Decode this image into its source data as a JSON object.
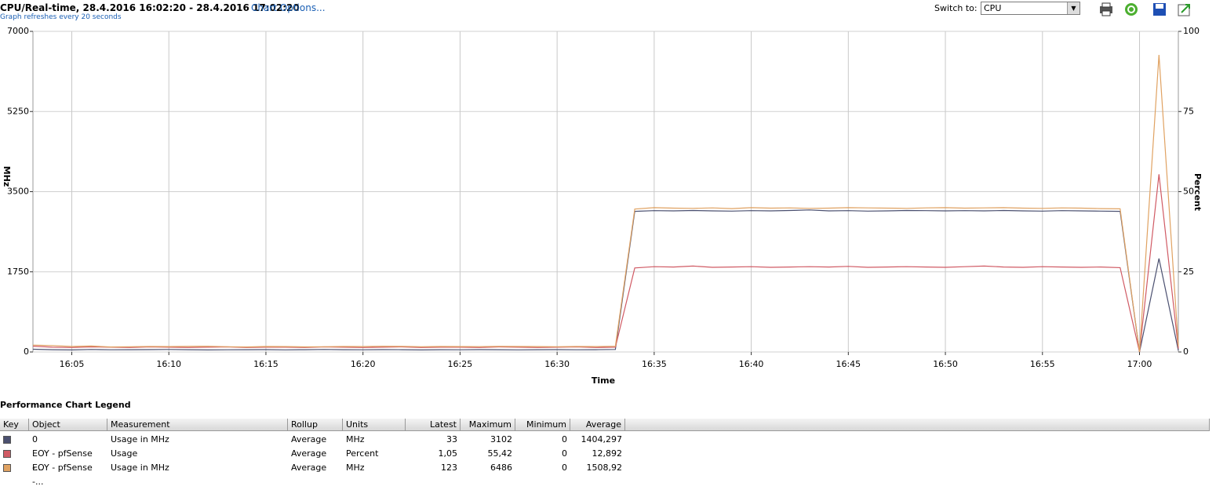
{
  "header": {
    "title": "CPU/Real-time, 28.4.2016 16:02:20 - 28.4.2016 17:02:20",
    "link": "Chart Options...",
    "subtitle": "Graph refreshes every 20 seconds",
    "switch_label": "Switch to:",
    "switch_value": "CPU"
  },
  "chart_data": {
    "type": "line",
    "x_label": "Time",
    "y_label": "MHz",
    "y2_label": "Percent",
    "x": [
      "16:03",
      "16:04",
      "16:05",
      "16:06",
      "16:07",
      "16:08",
      "16:09",
      "16:10",
      "16:11",
      "16:12",
      "16:13",
      "16:14",
      "16:15",
      "16:16",
      "16:17",
      "16:18",
      "16:19",
      "16:20",
      "16:21",
      "16:22",
      "16:23",
      "16:24",
      "16:25",
      "16:26",
      "16:27",
      "16:28",
      "16:29",
      "16:30",
      "16:31",
      "16:32",
      "16:33",
      "16:34",
      "16:35",
      "16:36",
      "16:37",
      "16:38",
      "16:39",
      "16:40",
      "16:41",
      "16:42",
      "16:43",
      "16:44",
      "16:45",
      "16:46",
      "16:47",
      "16:48",
      "16:49",
      "16:50",
      "16:51",
      "16:52",
      "16:53",
      "16:54",
      "16:55",
      "16:56",
      "16:57",
      "16:58",
      "16:59",
      "17:00",
      "17:01",
      "17:02"
    ],
    "xlim": [
      "16:03",
      "17:02"
    ],
    "xticks": [
      "16:05",
      "16:10",
      "16:15",
      "16:20",
      "16:25",
      "16:30",
      "16:35",
      "16:40",
      "16:45",
      "16:50",
      "16:55",
      "17:00"
    ],
    "ylim": [
      0,
      7000
    ],
    "yticks": [
      0,
      1750,
      3500,
      5250,
      7000
    ],
    "y2lim": [
      0,
      100
    ],
    "y2ticks": [
      0,
      25,
      50,
      75,
      100
    ],
    "grid": true,
    "series": [
      {
        "color": "#4b5070",
        "values": [
          60,
          50,
          45,
          55,
          48,
          50,
          52,
          55,
          50,
          45,
          48,
          50,
          52,
          47,
          50,
          55,
          50,
          48,
          52,
          50,
          45,
          50,
          48,
          52,
          50,
          47,
          50,
          52,
          48,
          50,
          55,
          3070,
          3085,
          3080,
          3090,
          3080,
          3075,
          3085,
          3080,
          3090,
          3102,
          3080,
          3085,
          3075,
          3080,
          3090,
          3085,
          3080,
          3085,
          3080,
          3090,
          3080,
          3075,
          3085,
          3080,
          3075,
          3070,
          0,
          2040,
          33
        ]
      },
      {
        "color": "#d05a64",
        "axis": "y2",
        "values": [
          1.8,
          1.5,
          1.4,
          1.6,
          1.5,
          1.4,
          1.6,
          1.5,
          1.4,
          1.5,
          1.6,
          1.4,
          1.5,
          1.5,
          1.4,
          1.6,
          1.5,
          1.4,
          1.5,
          1.6,
          1.4,
          1.5,
          1.5,
          1.4,
          1.6,
          1.5,
          1.4,
          1.5,
          1.6,
          1.4,
          1.5,
          26.2,
          26.6,
          26.5,
          26.8,
          26.4,
          26.5,
          26.6,
          26.4,
          26.5,
          26.6,
          26.5,
          26.7,
          26.4,
          26.5,
          26.6,
          26.5,
          26.4,
          26.6,
          26.8,
          26.5,
          26.4,
          26.6,
          26.5,
          26.4,
          26.5,
          26.3,
          0,
          55.42,
          1.05
        ]
      },
      {
        "color": "#e0a262",
        "values": [
          150,
          140,
          120,
          130,
          110,
          115,
          120,
          118,
          122,
          125,
          115,
          110,
          120,
          118,
          112,
          115,
          120,
          118,
          125,
          122,
          115,
          120,
          118,
          116,
          122,
          120,
          118,
          115,
          120,
          118,
          125,
          3120,
          3150,
          3140,
          3135,
          3145,
          3130,
          3150,
          3140,
          3145,
          3135,
          3140,
          3150,
          3145,
          3140,
          3135,
          3145,
          3150,
          3140,
          3145,
          3150,
          3140,
          3135,
          3145,
          3140,
          3130,
          3125,
          0,
          6486,
          123
        ]
      }
    ]
  },
  "legend_table": {
    "title": "Performance Chart Legend",
    "columns": [
      "Key",
      "Object",
      "Measurement",
      "Rollup",
      "Units",
      "Latest",
      "Maximum",
      "Minimum",
      "Average"
    ],
    "rows": [
      [
        "0",
        "Usage in MHz",
        "Average",
        "MHz",
        "33",
        "3102",
        "0",
        "1404,297"
      ],
      [
        "EOY - pfSense -...",
        "Usage",
        "Average",
        "Percent",
        "1,05",
        "55,42",
        "0",
        "12,892"
      ],
      [
        "EOY - pfSense -...",
        "Usage in MHz",
        "Average",
        "MHz",
        "123",
        "6486",
        "0",
        "1508,92"
      ]
    ]
  }
}
